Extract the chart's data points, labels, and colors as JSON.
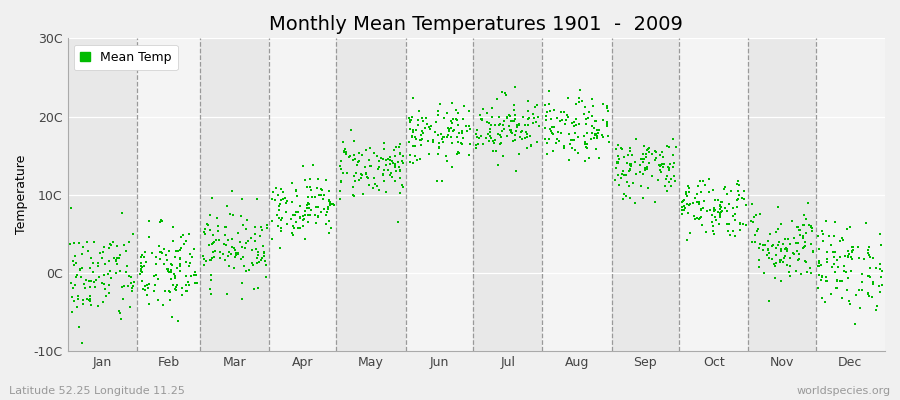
{
  "title": "Monthly Mean Temperatures 1901  -  2009",
  "ylabel": "Temperature",
  "subtitle_left": "Latitude 52.25 Longitude 11.25",
  "subtitle_right": "worldspecies.org",
  "legend_label": "Mean Temp",
  "years": 109,
  "monthly_means": [
    -0.5,
    0.2,
    3.5,
    8.5,
    13.5,
    17.5,
    18.8,
    18.2,
    13.5,
    8.5,
    3.5,
    0.8
  ],
  "monthly_stds": [
    3.2,
    3.0,
    2.5,
    2.0,
    2.0,
    2.0,
    2.0,
    2.0,
    2.0,
    2.0,
    2.5,
    2.8
  ],
  "ylim": [
    -10,
    30
  ],
  "yticks": [
    -10,
    0,
    10,
    20,
    30
  ],
  "ytick_labels": [
    "-10C",
    "0C",
    "10C",
    "20C",
    "30C"
  ],
  "month_names": [
    "Jan",
    "Feb",
    "Mar",
    "Apr",
    "May",
    "Jun",
    "Jul",
    "Aug",
    "Sep",
    "Oct",
    "Nov",
    "Dec"
  ],
  "month_days": [
    31,
    28,
    31,
    30,
    31,
    30,
    31,
    31,
    30,
    31,
    30,
    31
  ],
  "dot_color": "#00bb00",
  "dot_size": 3,
  "bg_color": "#f0f0f0",
  "band_color_odd": "#e8e8e8",
  "band_color_even": "#f4f4f4",
  "grid_color": "#999999",
  "white_hgrid_color": "#ffffff",
  "title_fontsize": 14,
  "axis_label_fontsize": 9,
  "tick_fontsize": 9,
  "seed": 42
}
